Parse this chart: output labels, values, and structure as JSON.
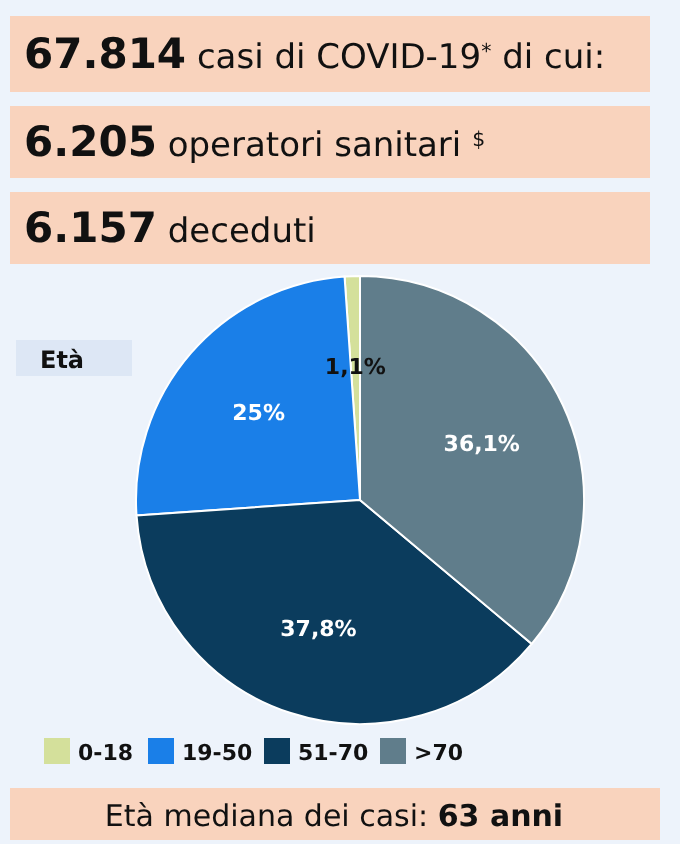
{
  "chart_data": {
    "type": "pie",
    "title": "67.814 casi di COVID-19$^{*}$ di cui:",
    "subtitle": "6.205 operatori sanitari $^{$}$",
    "annotations": [
      "6.157 deceduti",
      "Età mediana dei casi: 63 anni"
    ],
    "legend_title": "Età",
    "legend": "bottom",
    "categories": [
      "0-18",
      "19-50",
      "51-70",
      ">70"
    ],
    "values": [
      1.1,
      25,
      37.8,
      36.1
    ],
    "colors": [
      "#d4e09b",
      "#1a7fe8",
      "#0b3c5d",
      "#607d8b"
    ],
    "value_labels": [
      "1,1%",
      "25%",
      "37,8%",
      "36,1%"
    ]
  }
}
